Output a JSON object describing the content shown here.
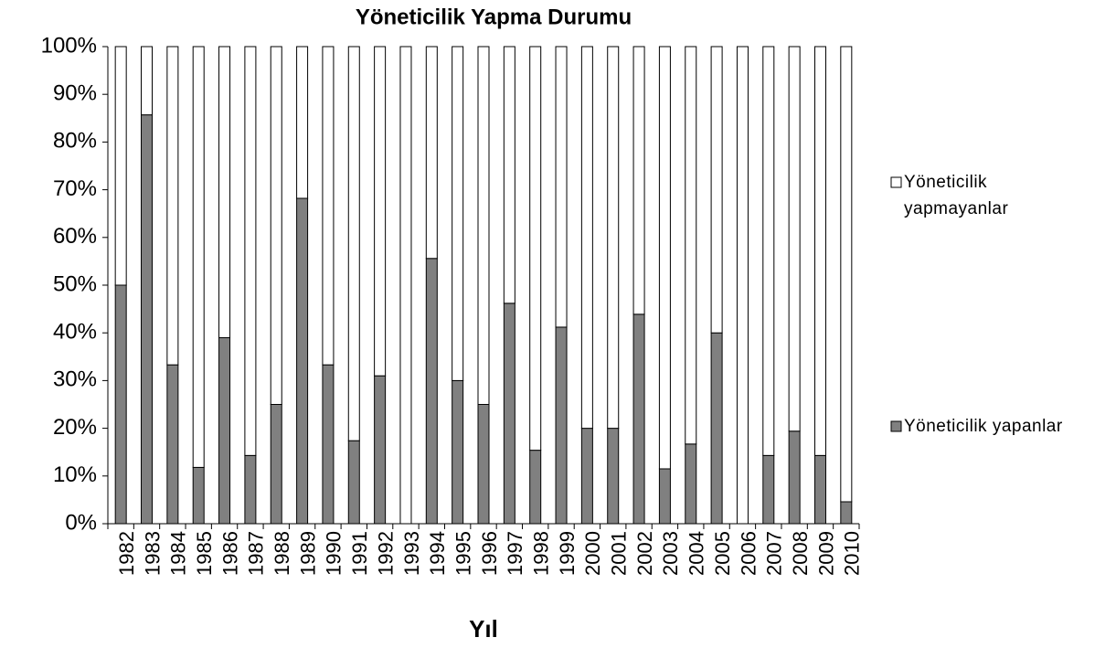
{
  "chart_data": {
    "type": "stacked_bar_percent",
    "title": "Yöneticilik Yapma Durumu",
    "x_label": "Yıl",
    "categories": [
      "1982",
      "1983",
      "1984",
      "1985",
      "1986",
      "1987",
      "1988",
      "1989",
      "1990",
      "1991",
      "1992",
      "1993",
      "1994",
      "1995",
      "1996",
      "1997",
      "1998",
      "1999",
      "2000",
      "2001",
      "2002",
      "2003",
      "2004",
      "2005",
      "2006",
      "2007",
      "2008",
      "2009",
      "2010"
    ],
    "series": [
      {
        "name": "Yöneticilik yapanlar",
        "color": "#808080",
        "values": [
          50,
          85.7,
          33.3,
          11.8,
          39,
          14.3,
          25,
          68.2,
          33.3,
          17.4,
          31,
          0,
          55.6,
          30,
          25,
          46.2,
          15.4,
          41.2,
          20,
          20,
          43.9,
          11.5,
          16.7,
          40,
          0,
          14.3,
          19.4,
          14.3,
          4.6
        ]
      },
      {
        "name": "Yöneticilik yapmayanlar",
        "color": "#ffffff",
        "values": [
          50,
          14.3,
          66.7,
          88.2,
          61,
          85.7,
          75,
          31.8,
          66.7,
          82.6,
          69,
          100,
          44.4,
          70,
          75,
          53.8,
          84.6,
          58.8,
          80,
          80,
          56.1,
          88.5,
          83.3,
          60,
          100,
          85.7,
          80.6,
          85.7,
          95.4
        ]
      }
    ],
    "ylim": [
      0,
      100
    ],
    "yticks": [
      {
        "value": 0,
        "label": "0%"
      },
      {
        "value": 10,
        "label": "10%"
      },
      {
        "value": 20,
        "label": "20%"
      },
      {
        "value": 30,
        "label": "30%"
      },
      {
        "value": 40,
        "label": "40%"
      },
      {
        "value": 50,
        "label": "50%"
      },
      {
        "value": 60,
        "label": "60%"
      },
      {
        "value": 70,
        "label": "70%"
      },
      {
        "value": 80,
        "label": "80%"
      },
      {
        "value": 90,
        "label": "90%"
      },
      {
        "value": 100,
        "label": "100%"
      }
    ],
    "legend": "right"
  }
}
